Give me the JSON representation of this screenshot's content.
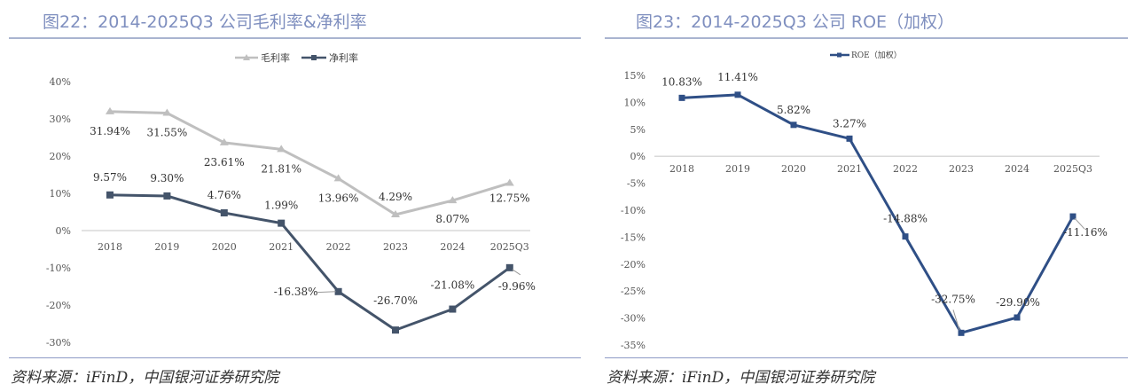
{
  "charts": [
    {
      "title": "图22：2014-2025Q3 公司毛利率&净利率",
      "source": "资料来源：iFinD，中国银河证券研究院"
    },
    {
      "title": "图23：2014-2025Q3 公司 ROE（加权）",
      "source": "资料来源：iFinD，中国银河证券研究院"
    }
  ],
  "chart_data": [
    {
      "type": "line",
      "title": "图22：2014-2025Q3 公司毛利率&净利率",
      "categories": [
        "2018",
        "2019",
        "2020",
        "2021",
        "2022",
        "2023",
        "2024",
        "2025Q3"
      ],
      "series": [
        {
          "name": "毛利率",
          "color": "#bfbfbf",
          "marker": "triangle",
          "values": [
            31.94,
            31.55,
            23.61,
            21.81,
            13.96,
            4.29,
            8.07,
            12.75
          ],
          "labels": [
            "31.94%",
            "31.55%",
            "23.61%",
            "21.81%",
            "13.96%",
            "4.29%",
            "8.07%",
            "12.75%"
          ]
        },
        {
          "name": "净利率",
          "color": "#44546a",
          "marker": "square",
          "values": [
            9.57,
            9.3,
            4.76,
            1.99,
            -16.38,
            -26.7,
            -21.08,
            -9.96
          ],
          "labels": [
            "9.57%",
            "9.30%",
            "4.76%",
            "1.99%",
            "-16.38%",
            "-26.70%",
            "-21.08%",
            "-9.96%"
          ]
        }
      ],
      "ylim": [
        -30,
        40
      ],
      "yticks": [
        40,
        30,
        20,
        10,
        0,
        -10,
        -20,
        -30
      ],
      "ytick_labels": [
        "40%",
        "30%",
        "20%",
        "10%",
        "0%",
        "-10%",
        "-20%",
        "-30%"
      ],
      "xlabel": "",
      "ylabel": "",
      "grid": false,
      "legend": "top-center"
    },
    {
      "type": "line",
      "title": "图23：2014-2025Q3 公司 ROE（加权）",
      "categories": [
        "2018",
        "2019",
        "2020",
        "2021",
        "2022",
        "2023",
        "2024",
        "2025Q3"
      ],
      "series": [
        {
          "name": "ROE（加权）",
          "color": "#2f4f86",
          "marker": "square",
          "values": [
            10.83,
            11.41,
            5.82,
            3.27,
            -14.88,
            -32.75,
            -29.9,
            -11.16
          ],
          "labels": [
            "10.83%",
            "11.41%",
            "5.82%",
            "3.27%",
            "-14.88%",
            "-32.75%",
            "-29.90%",
            "-11.16%"
          ]
        }
      ],
      "ylim": [
        -35,
        15
      ],
      "yticks": [
        15,
        10,
        5,
        0,
        -5,
        -10,
        -15,
        -20,
        -25,
        -30,
        -35
      ],
      "ytick_labels": [
        "15%",
        "10%",
        "5%",
        "0%",
        "-5%",
        "-10%",
        "-15%",
        "-20%",
        "-25%",
        "-30%",
        "-35%"
      ],
      "xlabel": "",
      "ylabel": "",
      "grid": false,
      "legend": "top-center"
    }
  ]
}
